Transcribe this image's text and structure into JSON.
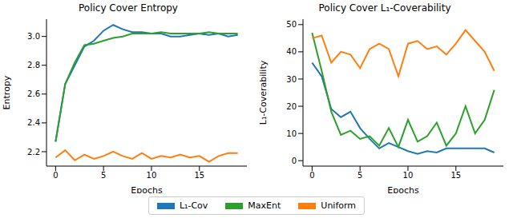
{
  "chart_data": [
    {
      "type": "line",
      "title": "Policy Cover Entropy",
      "x_label": "Epochs",
      "y_label": "Entropy",
      "x": [
        0,
        1,
        2,
        3,
        4,
        5,
        6,
        7,
        8,
        9,
        10,
        11,
        12,
        13,
        14,
        15,
        16,
        17,
        18,
        19
      ],
      "xlim": [
        -0.95,
        19.95
      ],
      "xticks": [
        0,
        5,
        10,
        15
      ],
      "ylim": [
        2.1,
        3.12
      ],
      "yticks": [
        {
          "value": 2.2,
          "label": "2.2"
        },
        {
          "value": 2.4,
          "label": "2.4"
        },
        {
          "value": 2.6,
          "label": "2.6"
        },
        {
          "value": 2.8,
          "label": "2.8"
        },
        {
          "value": 3.0,
          "label": "3.0"
        }
      ],
      "grid": false,
      "legend": "bottom",
      "series": [
        {
          "name": "L₁-Cov",
          "color": "#1f77b4",
          "values": [
            2.27,
            2.67,
            2.8,
            2.93,
            2.97,
            3.04,
            3.08,
            3.05,
            3.03,
            3.03,
            3.02,
            3.02,
            3.0,
            3.0,
            3.01,
            3.02,
            3.01,
            3.02,
            3.0,
            3.01
          ]
        },
        {
          "name": "MaxEnt",
          "color": "#2ca02c",
          "values": [
            2.27,
            2.67,
            2.82,
            2.94,
            2.95,
            2.97,
            2.99,
            3.0,
            3.02,
            3.02,
            3.02,
            3.03,
            3.02,
            3.02,
            3.02,
            3.02,
            3.03,
            3.02,
            3.02,
            3.02
          ]
        },
        {
          "name": "Uniform",
          "color": "#ff7f0e",
          "values": [
            2.16,
            2.21,
            2.14,
            2.18,
            2.15,
            2.17,
            2.2,
            2.17,
            2.15,
            2.19,
            2.15,
            2.17,
            2.16,
            2.18,
            2.16,
            2.17,
            2.13,
            2.17,
            2.19,
            2.19
          ]
        }
      ]
    },
    {
      "type": "line",
      "title": "Policy Cover L₁-Coverability",
      "x_label": "Epochs",
      "y_label": "L₁-Coverability",
      "x": [
        0,
        1,
        2,
        3,
        4,
        5,
        6,
        7,
        8,
        9,
        10,
        11,
        12,
        13,
        14,
        15,
        16,
        17,
        18,
        19
      ],
      "xlim": [
        -0.95,
        19.95
      ],
      "xticks": [
        0,
        5,
        10,
        15
      ],
      "ylim": [
        -2,
        52
      ],
      "yticks": [
        0,
        10,
        20,
        30,
        40,
        50
      ],
      "grid": false,
      "series": [
        {
          "name": "L₁-Cov",
          "color": "#1f77b4",
          "values": [
            36,
            31,
            19,
            16,
            18,
            12,
            8,
            4.5,
            6.5,
            5,
            3.5,
            2.5,
            3.5,
            3,
            4.5,
            4.5,
            4.5,
            4.5,
            4.5,
            3
          ]
        },
        {
          "name": "MaxEnt",
          "color": "#2ca02c",
          "values": [
            47,
            33,
            18,
            9.5,
            11,
            8,
            9,
            5.5,
            12,
            5,
            15,
            7,
            9,
            14,
            5.5,
            10,
            20,
            10,
            15,
            26
          ]
        },
        {
          "name": "Uniform",
          "color": "#ff7f0e",
          "values": [
            45,
            46,
            36,
            40,
            39,
            34,
            41,
            43,
            41,
            31,
            43,
            44,
            41,
            42,
            39,
            43,
            48,
            44,
            40,
            33
          ]
        }
      ]
    }
  ]
}
